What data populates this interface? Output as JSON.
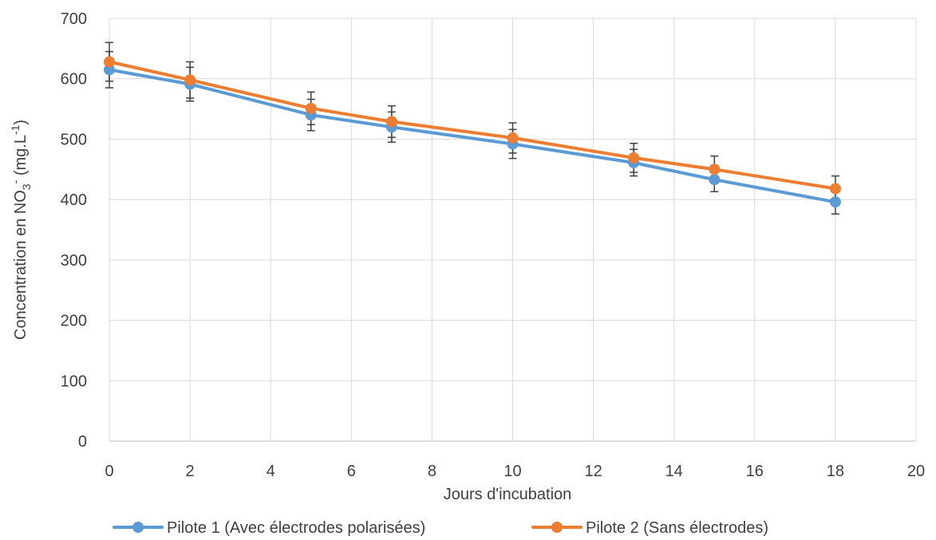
{
  "chart_data": {
    "type": "line",
    "xlabel": "Jours d'incubation",
    "ylabel": {
      "prefix": "Concentration en NO",
      "sub": "3",
      "sup": "-",
      "mid": " (mg.L",
      "sup2": "-1",
      "suffix": ")"
    },
    "xlim": [
      0,
      20
    ],
    "ylim": [
      0,
      700
    ],
    "x_ticks": [
      0,
      2,
      4,
      6,
      8,
      10,
      12,
      14,
      16,
      18,
      20
    ],
    "y_ticks": [
      0,
      100,
      200,
      300,
      400,
      500,
      600,
      700
    ],
    "grid": true,
    "legend_position": "bottom",
    "x": [
      0,
      2,
      5,
      7,
      10,
      13,
      15,
      18
    ],
    "series": [
      {
        "name": "Pilote 1 (Avec électrodes polarisées)",
        "color": "#5B9BD5",
        "values": [
          615,
          591,
          540,
          520,
          492,
          461,
          433,
          396
        ],
        "errors": [
          30,
          28,
          26,
          25,
          24,
          22,
          20,
          20
        ]
      },
      {
        "name": "Pilote 2 (Sans électrodes)",
        "color": "#ED7D31",
        "values": [
          628,
          598,
          551,
          529,
          502,
          469,
          450,
          418
        ],
        "errors": [
          32,
          30,
          27,
          26,
          25,
          24,
          22,
          21
        ]
      }
    ]
  }
}
